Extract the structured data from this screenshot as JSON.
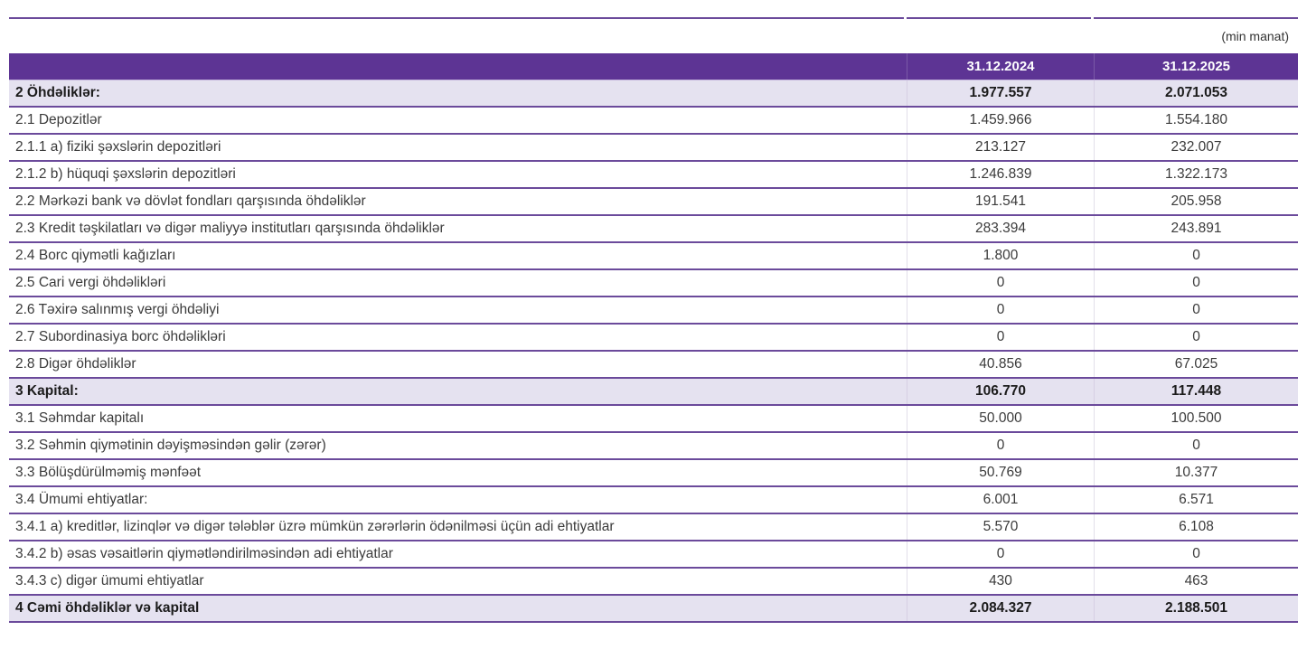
{
  "unit_note": "(min manat)",
  "colors": {
    "header_bg": "#5d3494",
    "highlight_bg": "#e5e2f0",
    "row_border": "#6b4a9b",
    "header_text": "#ffffff",
    "body_text": "#3b3b3b"
  },
  "table": {
    "columns": [
      "",
      "31.12.2024",
      "31.12.2025"
    ],
    "rows": [
      {
        "label": "2 Öhdəliklər:",
        "v2024": "1.977.557",
        "v2025": "2.071.053",
        "bold": true
      },
      {
        "label": "2.1 Depozitlər",
        "v2024": "1.459.966",
        "v2025": "1.554.180",
        "bold": false
      },
      {
        "label": "2.1.1 a) fiziki şəxslərin depozitləri",
        "v2024": "213.127",
        "v2025": "232.007",
        "bold": false
      },
      {
        "label": "2.1.2 b) hüquqi şəxslərin depozitləri",
        "v2024": "1.246.839",
        "v2025": "1.322.173",
        "bold": false
      },
      {
        "label": "2.2 Mərkəzi bank və dövlət fondları qarşısında öhdəliklər",
        "v2024": "191.541",
        "v2025": "205.958",
        "bold": false
      },
      {
        "label": "2.3 Kredit təşkilatları və digər maliyyə institutları qarşısında öhdəliklər",
        "v2024": "283.394",
        "v2025": "243.891",
        "bold": false
      },
      {
        "label": "2.4 Borc qiymətli kağızları",
        "v2024": "1.800",
        "v2025": "0",
        "bold": false
      },
      {
        "label": "2.5 Cari vergi öhdəlikləri",
        "v2024": "0",
        "v2025": "0",
        "bold": false
      },
      {
        "label": "2.6 Təxirə salınmış vergi öhdəliyi",
        "v2024": "0",
        "v2025": "0",
        "bold": false
      },
      {
        "label": "2.7 Subordinasiya borc öhdəlikləri",
        "v2024": "0",
        "v2025": "0",
        "bold": false
      },
      {
        "label": "2.8 Digər öhdəliklər",
        "v2024": "40.856",
        "v2025": "67.025",
        "bold": false
      },
      {
        "label": "3 Kapital:",
        "v2024": "106.770",
        "v2025": "117.448",
        "bold": true
      },
      {
        "label": "3.1 Səhmdar kapitalı",
        "v2024": "50.000",
        "v2025": "100.500",
        "bold": false
      },
      {
        "label": "3.2 Səhmin qiymətinin dəyişməsindən gəlir (zərər)",
        "v2024": "0",
        "v2025": "0",
        "bold": false
      },
      {
        "label": "3.3 Bölüşdürülməmiş mənfəət",
        "v2024": "50.769",
        "v2025": "10.377",
        "bold": false
      },
      {
        "label": "3.4 Ümumi ehtiyatlar:",
        "v2024": "6.001",
        "v2025": "6.571",
        "bold": false
      },
      {
        "label": "3.4.1 a) kreditlər, lizinqlər və digər tələblər üzrə mümkün zərərlərin ödənilməsi üçün adi ehtiyatlar",
        "v2024": "5.570",
        "v2025": "6.108",
        "bold": false
      },
      {
        "label": "3.4.2 b) əsas vəsaitlərin qiymətləndirilməsindən adi ehtiyatlar",
        "v2024": "0",
        "v2025": "0",
        "bold": false
      },
      {
        "label": "3.4.3 c) digər ümumi ehtiyatlar",
        "v2024": "430",
        "v2025": "463",
        "bold": false
      },
      {
        "label": "4 Cəmi öhdəliklər və kapital",
        "v2024": "2.084.327",
        "v2025": "2.188.501",
        "bold": true
      }
    ]
  }
}
